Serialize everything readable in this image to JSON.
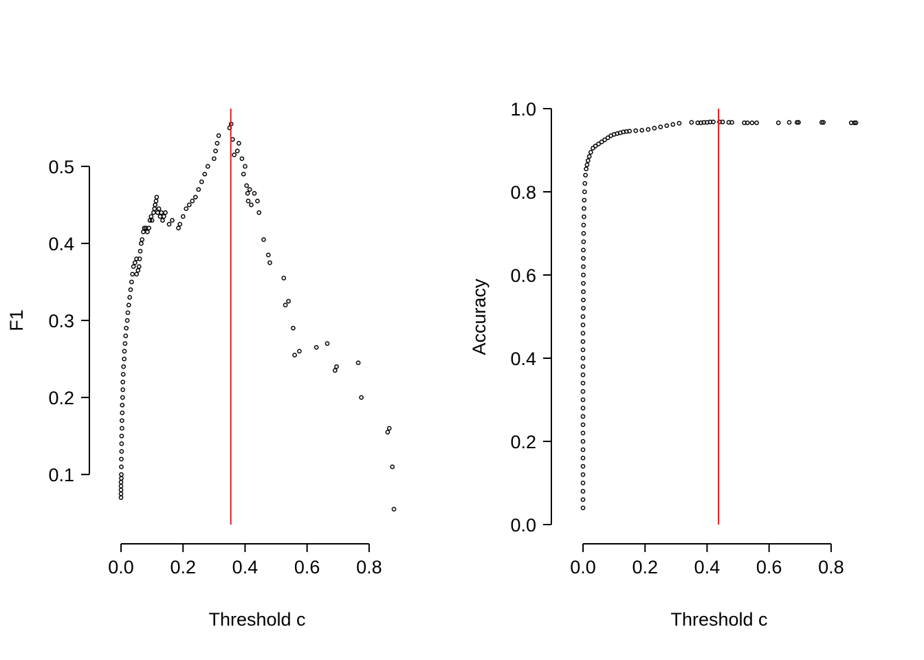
{
  "colors": {
    "points": "#000000",
    "threshold_line": "#e31a1c",
    "axes": "#000000"
  },
  "chart_data": [
    {
      "type": "scatter",
      "xlabel": "Threshold c",
      "ylabel": "F1",
      "xlim": [
        -0.04,
        0.92
      ],
      "ylim": [
        0.035,
        0.575
      ],
      "x_ticks": [
        0.0,
        0.2,
        0.4,
        0.6,
        0.8
      ],
      "x_tick_labels": [
        "0.0",
        "0.2",
        "0.4",
        "0.6",
        "0.8"
      ],
      "y_ticks": [
        0.1,
        0.2,
        0.3,
        0.4,
        0.5
      ],
      "y_tick_labels": [
        "0.1",
        "0.2",
        "0.3",
        "0.4",
        "0.5"
      ],
      "threshold_x": 0.354,
      "grid": false,
      "series": [
        {
          "points": [
            [
              0.0,
              0.07
            ],
            [
              0.0,
              0.075
            ],
            [
              0.0,
              0.08
            ],
            [
              0.0,
              0.085
            ],
            [
              0.0,
              0.09
            ],
            [
              0.001,
              0.095
            ],
            [
              0.001,
              0.1
            ],
            [
              0.001,
              0.11
            ],
            [
              0.001,
              0.12
            ],
            [
              0.002,
              0.13
            ],
            [
              0.002,
              0.14
            ],
            [
              0.002,
              0.15
            ],
            [
              0.003,
              0.16
            ],
            [
              0.003,
              0.17
            ],
            [
              0.004,
              0.18
            ],
            [
              0.004,
              0.19
            ],
            [
              0.005,
              0.2
            ],
            [
              0.006,
              0.21
            ],
            [
              0.006,
              0.22
            ],
            [
              0.007,
              0.23
            ],
            [
              0.008,
              0.24
            ],
            [
              0.01,
              0.25
            ],
            [
              0.011,
              0.26
            ],
            [
              0.013,
              0.27
            ],
            [
              0.015,
              0.28
            ],
            [
              0.017,
              0.29
            ],
            [
              0.02,
              0.3
            ],
            [
              0.022,
              0.31
            ],
            [
              0.025,
              0.32
            ],
            [
              0.028,
              0.33
            ],
            [
              0.031,
              0.34
            ],
            [
              0.034,
              0.35
            ],
            [
              0.037,
              0.36
            ],
            [
              0.04,
              0.37
            ],
            [
              0.045,
              0.375
            ],
            [
              0.05,
              0.38
            ],
            [
              0.05,
              0.36
            ],
            [
              0.055,
              0.365
            ],
            [
              0.058,
              0.37
            ],
            [
              0.06,
              0.38
            ],
            [
              0.062,
              0.39
            ],
            [
              0.065,
              0.4
            ],
            [
              0.068,
              0.405
            ],
            [
              0.072,
              0.415
            ],
            [
              0.075,
              0.42
            ],
            [
              0.08,
              0.42
            ],
            [
              0.085,
              0.415
            ],
            [
              0.09,
              0.42
            ],
            [
              0.093,
              0.43
            ],
            [
              0.097,
              0.435
            ],
            [
              0.1,
              0.43
            ],
            [
              0.105,
              0.44
            ],
            [
              0.108,
              0.445
            ],
            [
              0.11,
              0.45
            ],
            [
              0.113,
              0.455
            ],
            [
              0.115,
              0.46
            ],
            [
              0.118,
              0.44
            ],
            [
              0.122,
              0.445
            ],
            [
              0.126,
              0.435
            ],
            [
              0.13,
              0.44
            ],
            [
              0.134,
              0.43
            ],
            [
              0.138,
              0.435
            ],
            [
              0.143,
              0.44
            ],
            [
              0.155,
              0.425
            ],
            [
              0.165,
              0.43
            ],
            [
              0.185,
              0.42
            ],
            [
              0.19,
              0.425
            ],
            [
              0.2,
              0.435
            ],
            [
              0.21,
              0.445
            ],
            [
              0.22,
              0.45
            ],
            [
              0.23,
              0.455
            ],
            [
              0.24,
              0.46
            ],
            [
              0.25,
              0.47
            ],
            [
              0.26,
              0.48
            ],
            [
              0.27,
              0.49
            ],
            [
              0.28,
              0.5
            ],
            [
              0.3,
              0.51
            ],
            [
              0.305,
              0.52
            ],
            [
              0.31,
              0.53
            ],
            [
              0.315,
              0.54
            ],
            [
              0.35,
              0.55
            ],
            [
              0.355,
              0.555
            ],
            [
              0.36,
              0.535
            ],
            [
              0.365,
              0.515
            ],
            [
              0.375,
              0.52
            ],
            [
              0.38,
              0.53
            ],
            [
              0.39,
              0.51
            ],
            [
              0.395,
              0.49
            ],
            [
              0.4,
              0.5
            ],
            [
              0.405,
              0.475
            ],
            [
              0.408,
              0.465
            ],
            [
              0.41,
              0.455
            ],
            [
              0.415,
              0.47
            ],
            [
              0.42,
              0.45
            ],
            [
              0.43,
              0.465
            ],
            [
              0.44,
              0.455
            ],
            [
              0.445,
              0.44
            ],
            [
              0.46,
              0.405
            ],
            [
              0.475,
              0.385
            ],
            [
              0.48,
              0.375
            ],
            [
              0.525,
              0.355
            ],
            [
              0.53,
              0.32
            ],
            [
              0.54,
              0.325
            ],
            [
              0.555,
              0.29
            ],
            [
              0.56,
              0.255
            ],
            [
              0.575,
              0.26
            ],
            [
              0.63,
              0.265
            ],
            [
              0.665,
              0.27
            ],
            [
              0.69,
              0.235
            ],
            [
              0.695,
              0.24
            ],
            [
              0.765,
              0.245
            ],
            [
              0.775,
              0.2
            ],
            [
              0.86,
              0.155
            ],
            [
              0.865,
              0.16
            ],
            [
              0.875,
              0.11
            ],
            [
              0.88,
              0.055
            ]
          ]
        }
      ]
    },
    {
      "type": "scatter",
      "xlabel": "Threshold c",
      "ylabel": "Accuracy",
      "xlim": [
        -0.04,
        0.92
      ],
      "ylim": [
        0.0,
        1.0
      ],
      "x_ticks": [
        0.0,
        0.2,
        0.4,
        0.6,
        0.8
      ],
      "x_tick_labels": [
        "0.0",
        "0.2",
        "0.4",
        "0.6",
        "0.8"
      ],
      "y_ticks": [
        0.0,
        0.2,
        0.4,
        0.6,
        0.8,
        1.0
      ],
      "y_tick_labels": [
        "0.0",
        "0.2",
        "0.4",
        "0.6",
        "0.8",
        "1.0"
      ],
      "threshold_x": 0.437,
      "grid": false,
      "series": [
        {
          "points": [
            [
              0.0,
              0.04
            ],
            [
              0.0,
              0.06
            ],
            [
              0.0,
              0.08
            ],
            [
              0.0,
              0.1
            ],
            [
              0.0,
              0.12
            ],
            [
              0.0,
              0.14
            ],
            [
              0.0,
              0.16
            ],
            [
              0.0,
              0.18
            ],
            [
              0.0,
              0.2
            ],
            [
              0.0,
              0.22
            ],
            [
              0.0,
              0.24
            ],
            [
              0.0,
              0.26
            ],
            [
              0.0,
              0.28
            ],
            [
              0.0,
              0.3
            ],
            [
              0.0,
              0.32
            ],
            [
              0.0,
              0.34
            ],
            [
              0.0,
              0.36
            ],
            [
              0.0,
              0.38
            ],
            [
              0.0,
              0.4
            ],
            [
              0.0,
              0.42
            ],
            [
              0.0,
              0.44
            ],
            [
              0.0,
              0.46
            ],
            [
              0.0,
              0.48
            ],
            [
              0.0,
              0.5
            ],
            [
              0.001,
              0.52
            ],
            [
              0.001,
              0.54
            ],
            [
              0.001,
              0.56
            ],
            [
              0.001,
              0.58
            ],
            [
              0.001,
              0.6
            ],
            [
              0.001,
              0.62
            ],
            [
              0.001,
              0.64
            ],
            [
              0.001,
              0.66
            ],
            [
              0.002,
              0.68
            ],
            [
              0.002,
              0.7
            ],
            [
              0.002,
              0.72
            ],
            [
              0.003,
              0.74
            ],
            [
              0.003,
              0.76
            ],
            [
              0.004,
              0.78
            ],
            [
              0.005,
              0.8
            ],
            [
              0.006,
              0.82
            ],
            [
              0.008,
              0.84
            ],
            [
              0.01,
              0.855
            ],
            [
              0.013,
              0.865
            ],
            [
              0.016,
              0.875
            ],
            [
              0.02,
              0.885
            ],
            [
              0.025,
              0.895
            ],
            [
              0.032,
              0.905
            ],
            [
              0.04,
              0.91
            ],
            [
              0.05,
              0.915
            ],
            [
              0.06,
              0.92
            ],
            [
              0.07,
              0.925
            ],
            [
              0.08,
              0.93
            ],
            [
              0.09,
              0.935
            ],
            [
              0.1,
              0.938
            ],
            [
              0.11,
              0.94
            ],
            [
              0.12,
              0.942
            ],
            [
              0.13,
              0.944
            ],
            [
              0.14,
              0.945
            ],
            [
              0.15,
              0.946
            ],
            [
              0.17,
              0.947
            ],
            [
              0.19,
              0.948
            ],
            [
              0.21,
              0.95
            ],
            [
              0.23,
              0.953
            ],
            [
              0.25,
              0.956
            ],
            [
              0.27,
              0.959
            ],
            [
              0.29,
              0.962
            ],
            [
              0.31,
              0.965
            ],
            [
              0.35,
              0.967
            ],
            [
              0.37,
              0.966
            ],
            [
              0.38,
              0.966
            ],
            [
              0.39,
              0.967
            ],
            [
              0.4,
              0.967
            ],
            [
              0.41,
              0.968
            ],
            [
              0.42,
              0.968
            ],
            [
              0.44,
              0.968
            ],
            [
              0.45,
              0.968
            ],
            [
              0.47,
              0.967
            ],
            [
              0.48,
              0.967
            ],
            [
              0.52,
              0.966
            ],
            [
              0.53,
              0.966
            ],
            [
              0.545,
              0.966
            ],
            [
              0.56,
              0.966
            ],
            [
              0.63,
              0.966
            ],
            [
              0.665,
              0.967
            ],
            [
              0.69,
              0.967
            ],
            [
              0.695,
              0.967
            ],
            [
              0.77,
              0.967
            ],
            [
              0.775,
              0.967
            ],
            [
              0.865,
              0.966
            ],
            [
              0.875,
              0.966
            ],
            [
              0.88,
              0.966
            ]
          ]
        }
      ]
    }
  ]
}
